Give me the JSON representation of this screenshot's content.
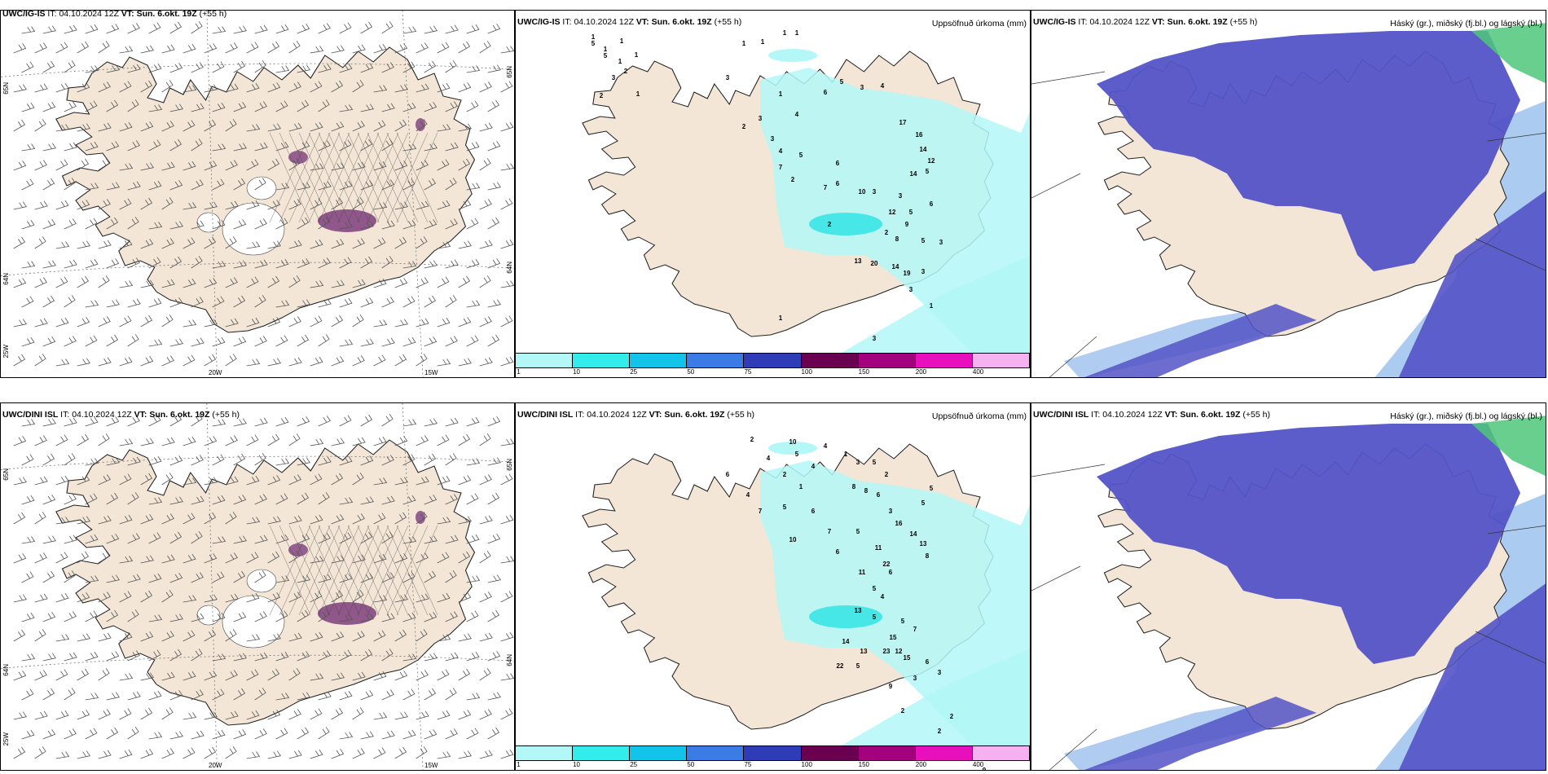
{
  "colors": {
    "land": "#f3e6d6",
    "precip_light": "#b3f7f7",
    "precip_mid": "#3ae6e6",
    "cloud_high": "#5353c7",
    "cloud_low": "#a7c8f0",
    "icing": "#7d3d7d"
  },
  "rows": [
    {
      "wind_panel": {
        "model": "UWC/IG-IS",
        "it_label": "IT:",
        "it_value": "04.10.2024 12Z",
        "vt_label": "VT: Sun. 6.okt. 19Z",
        "lead": "(+55 h)",
        "lon_labels": [
          "20W",
          "15W"
        ],
        "lat_labels": [
          "65N",
          "64N",
          "25W"
        ]
      },
      "precip_panel": {
        "model": "UWC/IG-IS",
        "it_label": "IT:",
        "it_value": "04.10.2024 12Z",
        "vt_label": "VT: Sun. 6.okt. 19Z",
        "lead": "(+55 h)",
        "right_title": "Uppsöfnuð úrkoma (mm)",
        "colorbar": {
          "labels": [
            "1",
            "10",
            "25",
            "50",
            "75",
            "100",
            "150",
            "200",
            "400"
          ],
          "colors": [
            "#b3f7f7",
            "#33ecec",
            "#12c3ea",
            "#3b7be6",
            "#2f3cb8",
            "#6a0050",
            "#a3007e",
            "#e80fbd",
            "#f6b2f0"
          ]
        },
        "values": [
          "1",
          "1",
          "1",
          "1",
          "2",
          "1",
          "2",
          "3",
          "1",
          "1",
          "1",
          "1",
          "1",
          "3",
          "1",
          "2",
          "3",
          "4",
          "6",
          "5",
          "4",
          "3",
          "3",
          "4",
          "5",
          "7",
          "2",
          "7",
          "6",
          "17",
          "16",
          "14",
          "12",
          "5",
          "6",
          "14",
          "10",
          "3",
          "3",
          "12",
          "5",
          "6",
          "9",
          "2",
          "8",
          "5",
          "3",
          "2",
          "13",
          "20",
          "14",
          "19",
          "3",
          "3",
          "1",
          "1",
          "3",
          "2",
          "5",
          "5",
          "5"
        ]
      },
      "cloud_panel": {
        "model": "UWC/IG-IS",
        "it_label": "IT:",
        "it_value": "04.10.2024 12Z",
        "vt_label": "VT: Sun. 6.okt. 19Z",
        "lead": "(+55 h)",
        "right_title": "Háský (gr.), miðský (fj.bl.) og lágský (bl.)"
      }
    },
    {
      "wind_panel": {
        "model": "UWC/DINI ISL",
        "it_label": "IT:",
        "it_value": "04.10.2024 12Z",
        "vt_label": "VT: Sun. 6.okt. 19Z",
        "lead": "(+55 h)",
        "lon_labels": [
          "20W",
          "15W"
        ],
        "lat_labels": [
          "65N",
          "64N",
          "25W"
        ]
      },
      "precip_panel": {
        "model": "UWC/DINI ISL",
        "it_label": "IT:",
        "it_value": "04.10.2024 12Z",
        "vt_label": "VT: Sun. 6.okt. 19Z",
        "lead": "(+55 h)",
        "right_title": "Uppsöfnuð úrkoma (mm)",
        "colorbar": {
          "labels": [
            "1",
            "10",
            "25",
            "50",
            "75",
            "100",
            "150",
            "200",
            "400"
          ],
          "colors": [
            "#b3f7f7",
            "#33ecec",
            "#12c3ea",
            "#3b7be6",
            "#2f3cb8",
            "#6a0050",
            "#a3007e",
            "#e80fbd",
            "#f6b2f0"
          ]
        },
        "values": [
          "2",
          "10",
          "5",
          "4",
          "4",
          "1",
          "3",
          "5",
          "2",
          "8",
          "8",
          "6",
          "3",
          "5",
          "5",
          "6",
          "4",
          "2",
          "1",
          "6",
          "7",
          "6",
          "5",
          "11",
          "22",
          "4",
          "7",
          "5",
          "10",
          "16",
          "14",
          "13",
          "8",
          "6",
          "11",
          "5",
          "4",
          "13",
          "5",
          "5",
          "7",
          "15",
          "12",
          "14",
          "13",
          "23",
          "15",
          "22",
          "5",
          "6",
          "3",
          "9",
          "3",
          "2",
          "2",
          "2",
          "2",
          "9",
          "3"
        ]
      },
      "cloud_panel": {
        "model": "UWC/DINI ISL",
        "it_label": "IT:",
        "it_value": "04.10.2024 12Z",
        "vt_label": "VT: Sun. 6.okt. 19Z",
        "lead": "(+55 h)",
        "right_title": "Háský (gr.), miðský (fj.bl.) og lágský (bl.)"
      }
    }
  ]
}
